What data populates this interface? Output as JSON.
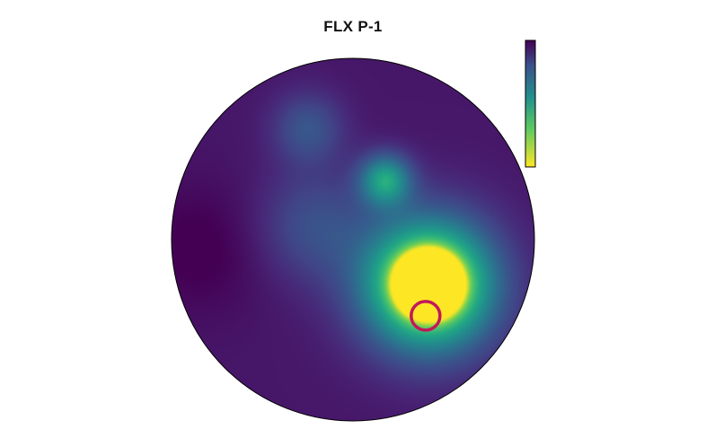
{
  "chart_data": {
    "type": "heatmap",
    "subtype": "topographic-map",
    "title": "FLX P-1",
    "colormap": "viridis",
    "colorbar": {
      "orientation": "vertical",
      "high_color_at": "bottom",
      "low_color_at": "top",
      "tick_labels": []
    },
    "grid": false,
    "hotspots": [
      {
        "label": "peak",
        "x": 0.42,
        "y": -0.25,
        "intensity": 1.0
      },
      {
        "label": "secondary",
        "x": 0.18,
        "y": 0.33,
        "intensity": 0.62
      },
      {
        "label": "tertiary",
        "x": -0.22,
        "y": 0.08,
        "intensity": 0.22
      },
      {
        "label": "upper-left",
        "x": -0.25,
        "y": 0.62,
        "intensity": 0.25
      }
    ],
    "marker": {
      "shape": "circle",
      "x": 0.4,
      "y": -0.42,
      "color": "#c2185b"
    },
    "colors": {
      "outline": "#000000",
      "marker": "#c2185b",
      "background": "#ffffff"
    }
  }
}
